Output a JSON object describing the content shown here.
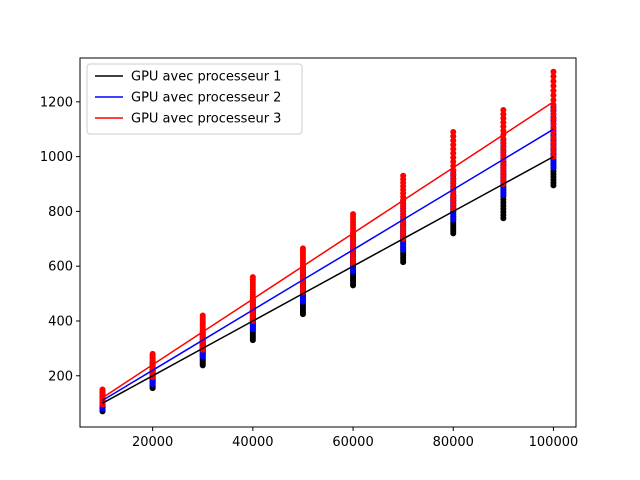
{
  "chart_data": {
    "type": "scatter",
    "title": "",
    "xlabel": "",
    "ylabel": "",
    "xlim": [
      5500,
      104500
    ],
    "ylim": [
      13,
      1360
    ],
    "xticks": [
      20000,
      40000,
      60000,
      80000,
      100000
    ],
    "xtick_labels": [
      "20000",
      "40000",
      "60000",
      "80000",
      "100000"
    ],
    "yticks": [
      200,
      400,
      600,
      800,
      1000,
      1200
    ],
    "ytick_labels": [
      "200",
      "400",
      "600",
      "800",
      "1000",
      "1200"
    ],
    "grid": false,
    "legend_position": "top-left",
    "x": [
      10000,
      20000,
      30000,
      40000,
      50000,
      60000,
      70000,
      80000,
      90000,
      100000
    ],
    "series": [
      {
        "name": "GPU avec processeur 1",
        "color": "#000000",
        "line": [
          100,
          200,
          300,
          400,
          500,
          600,
          700,
          800,
          900,
          1000
        ],
        "scatter_min": [
          70,
          155,
          238,
          330,
          425,
          530,
          615,
          720,
          775,
          895
        ],
        "scatter_max": [
          110,
          220,
          320,
          440,
          550,
          650,
          760,
          860,
          980,
          1080
        ]
      },
      {
        "name": "GPU avec processeur 2",
        "color": "#0000ff",
        "line": [
          110,
          220,
          330,
          440,
          550,
          660,
          770,
          880,
          990,
          1100
        ],
        "scatter_min": [
          80,
          170,
          270,
          370,
          470,
          580,
          660,
          770,
          860,
          960
        ],
        "scatter_max": [
          125,
          250,
          360,
          480,
          600,
          720,
          840,
          950,
          1060,
          1180
        ]
      },
      {
        "name": "GPU avec processeur 3",
        "color": "#ff0000",
        "line": [
          120,
          240,
          360,
          480,
          600,
          720,
          840,
          960,
          1080,
          1200
        ],
        "scatter_min": [
          95,
          195,
          295,
          400,
          505,
          610,
          700,
          810,
          900,
          1000
        ],
        "scatter_max": [
          150,
          280,
          420,
          560,
          665,
          790,
          930,
          1090,
          1170,
          1310
        ]
      }
    ]
  }
}
